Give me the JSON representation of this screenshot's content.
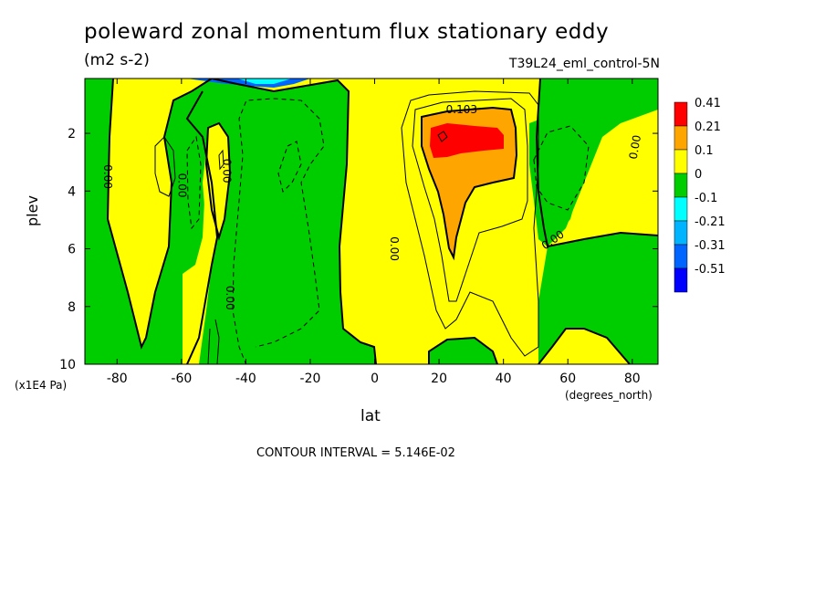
{
  "title": "poleward zonal momentum flux stationary eddy",
  "units": "(m2 s-2)",
  "dataset": "T39L24_eml_control-5N",
  "contour_interval": "CONTOUR INTERVAL = 5.146E-02",
  "chart_data": {
    "type": "heatmap",
    "title": "poleward zonal momentum flux stationary eddy",
    "xlabel": "lat",
    "x_units": "(degrees_north)",
    "ylabel": "plev",
    "y_units": "(x1E4 Pa)",
    "xlim": [
      -90,
      88
    ],
    "ylim": [
      10,
      0.1
    ],
    "x_ticks": [
      -80,
      -60,
      -40,
      -20,
      0,
      20,
      40,
      60,
      80
    ],
    "x_tick_labels": [
      "-80",
      "-60",
      "-40",
      "-20",
      "0",
      "20",
      "40",
      "60",
      "80"
    ],
    "y_ticks": [
      2,
      4,
      6,
      8,
      10
    ],
    "y_tick_labels": [
      "2",
      "4",
      "6",
      "8",
      "10"
    ],
    "legend": {
      "placement": "right",
      "levels": [
        "0.41",
        "0.21",
        "0.1",
        "0",
        "-0.1",
        "-0.21",
        "-0.31",
        "-0.51"
      ],
      "colors": [
        "#ff0000",
        "#ffa500",
        "#ffff00",
        "#00cd00",
        "#00ffff",
        "#00b4ff",
        "#0064ff",
        "#0000ff"
      ]
    },
    "contour_labels": [
      {
        "text": "0.103",
        "lat": 27,
        "plev": 1.3
      },
      {
        "text": "0.00",
        "lat": -84,
        "plev": 3.5
      },
      {
        "text": "0.00",
        "lat": -61,
        "plev": 3.8
      },
      {
        "text": "0.00",
        "lat": -47,
        "plev": 3.3
      },
      {
        "text": "0.00",
        "lat": -46,
        "plev": 7.7
      },
      {
        "text": "0.00",
        "lat": 5,
        "plev": 6.0
      },
      {
        "text": "0.00",
        "lat": 56,
        "plev": 5.8
      },
      {
        "text": "0.00",
        "lat": 82,
        "plev": 2.5
      }
    ],
    "grid": false
  }
}
